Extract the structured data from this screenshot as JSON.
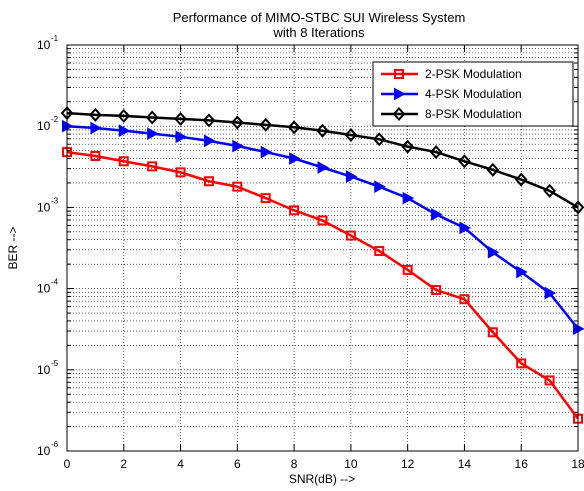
{
  "chart_data": {
    "type": "line",
    "title": "Performance of MIMO-STBC SUI Wireless System",
    "subtitle": "with 8 Iterations",
    "xlabel": "SNR(dB) -->",
    "ylabel": "BER -->",
    "xlim": [
      0,
      18
    ],
    "ylim": [
      1e-06,
      0.1
    ],
    "yscale": "log",
    "grid": "on (major and minor, dotted)",
    "legend_position": "top-right",
    "xticks": [
      "0",
      "2",
      "4",
      "6",
      "8",
      "10",
      "12",
      "14",
      "16",
      "18"
    ],
    "yticks": [
      {
        "base": "10",
        "exp": "-6"
      },
      {
        "base": "10",
        "exp": "-5"
      },
      {
        "base": "10",
        "exp": "-4"
      },
      {
        "base": "10",
        "exp": "-3"
      },
      {
        "base": "10",
        "exp": "-2"
      },
      {
        "base": "10",
        "exp": "-1"
      }
    ],
    "x": [
      0,
      1,
      2,
      3,
      4,
      5,
      6,
      7,
      8,
      9,
      10,
      11,
      12,
      13,
      14,
      15,
      16,
      17,
      18
    ],
    "series": [
      {
        "name": "2-PSK Modulation",
        "color": "#ff0000",
        "marker": "square",
        "values": [
          0.0048,
          0.0043,
          0.0037,
          0.0032,
          0.0027,
          0.0021,
          0.0018,
          0.0013,
          0.00092,
          0.00069,
          0.00045,
          0.00029,
          0.00017,
          9.6e-05,
          7.4e-05,
          2.9e-05,
          1.2e-05,
          7.4e-06,
          2.5e-06
        ]
      },
      {
        "name": "4-PSK Modulation",
        "color": "#0000ff",
        "marker": "triangle-right",
        "values": [
          0.01,
          0.0095,
          0.0088,
          0.0081,
          0.0074,
          0.0066,
          0.0057,
          0.0048,
          0.004,
          0.0031,
          0.0024,
          0.0018,
          0.0013,
          0.00082,
          0.00056,
          0.00028,
          0.00016,
          8.8e-05,
          3.2e-05
        ]
      },
      {
        "name": "8-PSK Modulation",
        "color": "#000000",
        "marker": "diamond",
        "values": [
          0.0145,
          0.0138,
          0.0134,
          0.0128,
          0.0123,
          0.0118,
          0.0111,
          0.0104,
          0.0097,
          0.0088,
          0.0078,
          0.0069,
          0.0056,
          0.0048,
          0.0037,
          0.0029,
          0.0022,
          0.0016,
          0.001
        ]
      }
    ]
  }
}
